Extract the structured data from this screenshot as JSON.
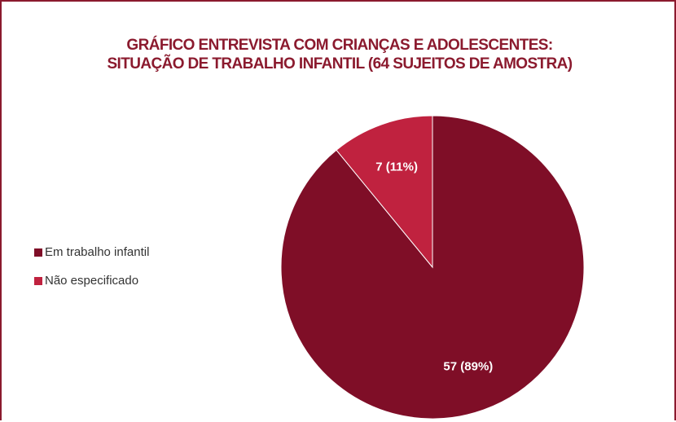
{
  "chart_data": {
    "type": "pie",
    "title": "GRÁFICO ENTREVISTA COM CRIANÇAS  E ADOLESCENTES: SITUAÇÃO DE TRABALHO INFANTIL (64 SUJEITOS DE AMOSTRA)",
    "categories": [
      "Em trabalho infantil",
      "Não especificado"
    ],
    "values": [
      57,
      7
    ],
    "value_labels": [
      "57 (89%)",
      "7 (11%)"
    ],
    "colors": [
      "#7f0e27",
      "#c0223f"
    ],
    "legend": "left"
  }
}
